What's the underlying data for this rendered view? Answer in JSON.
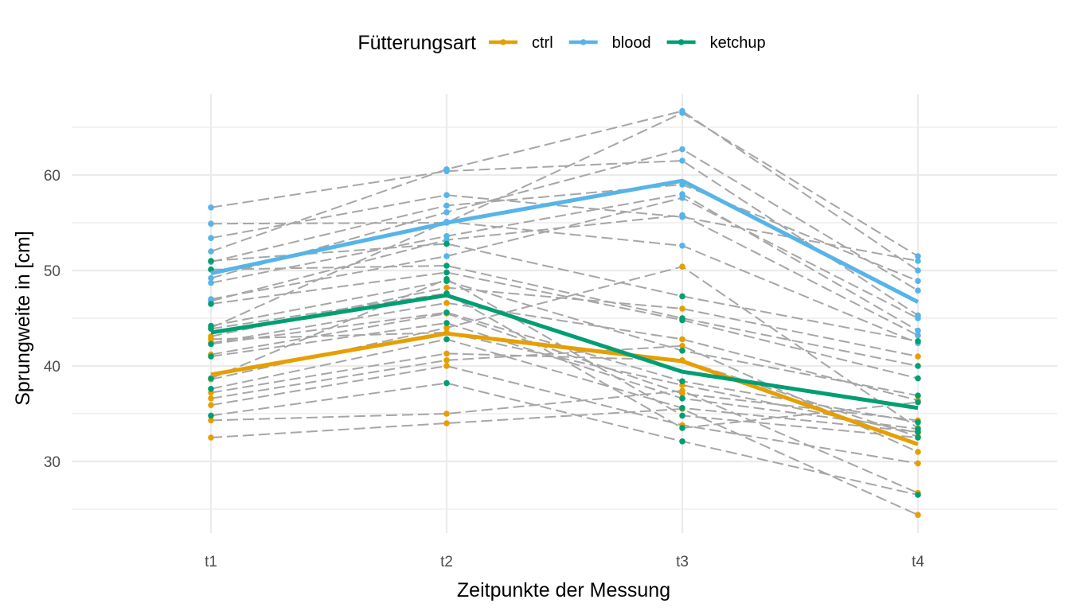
{
  "chart_data": {
    "type": "line",
    "xlabel": "Zeitpunkte der Messung",
    "ylabel": "Sprungweite in [cm]",
    "categories": [
      "t1",
      "t2",
      "t3",
      "t4"
    ],
    "ylim": [
      22.5,
      68.5
    ],
    "yticks": [
      30,
      40,
      50,
      60
    ],
    "grid": true,
    "legend": {
      "title": "Fütterungsart",
      "placement": "top",
      "entries": [
        "ctrl",
        "blood",
        "ketchup"
      ]
    },
    "colors": {
      "ctrl": "#E69F00",
      "blood": "#56B4E9",
      "ketchup": "#009E73",
      "individual": "#a6a6a6",
      "grid": "#ebebeb"
    },
    "series": [
      {
        "name": "ctrl",
        "values": [
          39.1,
          43.4,
          40.5,
          31.8
        ]
      },
      {
        "name": "blood",
        "values": [
          49.7,
          55.0,
          59.4,
          46.7
        ]
      },
      {
        "name": "ketchup",
        "values": [
          43.5,
          47.4,
          39.4,
          35.6
        ]
      }
    ],
    "individuals": [
      {
        "group": "blood",
        "values": [
          56.6,
          60.4,
          61.5,
          45.3
        ]
      },
      {
        "group": "blood",
        "values": [
          54.9,
          55.0,
          66.5,
          51.5
        ]
      },
      {
        "group": "blood",
        "values": [
          53.4,
          57.9,
          55.6,
          51.0
        ]
      },
      {
        "group": "blood",
        "values": [
          52.0,
          60.6,
          66.7,
          50.0
        ]
      },
      {
        "group": "blood",
        "values": [
          50.9,
          56.8,
          59.0,
          48.9
        ]
      },
      {
        "group": "blood",
        "values": [
          49.2,
          56.1,
          62.7,
          47.9
        ]
      },
      {
        "group": "blood",
        "values": [
          48.7,
          53.6,
          58.0,
          43.7
        ]
      },
      {
        "group": "blood",
        "values": [
          47.0,
          51.5,
          57.6,
          45.0
        ]
      },
      {
        "group": "blood",
        "values": [
          46.8,
          53.2,
          55.8,
          43.2
        ]
      },
      {
        "group": "blood",
        "values": [
          44.0,
          55.1,
          52.6,
          42.4
        ]
      },
      {
        "group": "ctrl",
        "values": [
          43.1,
          48.2,
          46.0,
          41.0
        ]
      },
      {
        "group": "ctrl",
        "values": [
          42.4,
          46.6,
          42.8,
          36.4
        ]
      },
      {
        "group": "ctrl",
        "values": [
          41.2,
          45.5,
          37.1,
          34.3
        ]
      },
      {
        "group": "ctrl",
        "values": [
          38.6,
          44.0,
          50.4,
          33.5
        ]
      },
      {
        "group": "ctrl",
        "values": [
          37.2,
          41.3,
          40.6,
          32.6
        ]
      },
      {
        "group": "ctrl",
        "values": [
          36.6,
          40.6,
          42.1,
          31.0
        ]
      },
      {
        "group": "ctrl",
        "values": [
          35.9,
          40.0,
          33.8,
          29.8
        ]
      },
      {
        "group": "ctrl",
        "values": [
          34.3,
          35.0,
          37.4,
          26.7
        ]
      },
      {
        "group": "ctrl",
        "values": [
          32.5,
          34.0,
          35.5,
          24.4
        ]
      },
      {
        "group": "ctrl",
        "values": [
          42.8,
          43.5,
          38.0,
          33.0
        ]
      },
      {
        "group": "ketchup",
        "values": [
          51.0,
          52.8,
          47.3,
          42.6
        ]
      },
      {
        "group": "ketchup",
        "values": [
          50.1,
          50.5,
          45.0,
          40.0
        ]
      },
      {
        "group": "ketchup",
        "values": [
          46.5,
          49.8,
          44.8,
          38.7
        ]
      },
      {
        "group": "ketchup",
        "values": [
          44.2,
          48.9,
          41.6,
          36.9
        ]
      },
      {
        "group": "ketchup",
        "values": [
          42.3,
          45.6,
          38.4,
          34.1
        ]
      },
      {
        "group": "ketchup",
        "values": [
          41.0,
          44.5,
          36.6,
          33.4
        ]
      },
      {
        "group": "ketchup",
        "values": [
          37.6,
          42.8,
          35.6,
          33.1
        ]
      },
      {
        "group": "ketchup",
        "values": [
          34.8,
          38.2,
          32.1,
          26.5
        ]
      },
      {
        "group": "ketchup",
        "values": [
          38.7,
          49.1,
          34.8,
          32.5
        ]
      },
      {
        "group": "ketchup",
        "values": [
          43.9,
          47.6,
          33.5,
          36.2
        ]
      }
    ]
  }
}
